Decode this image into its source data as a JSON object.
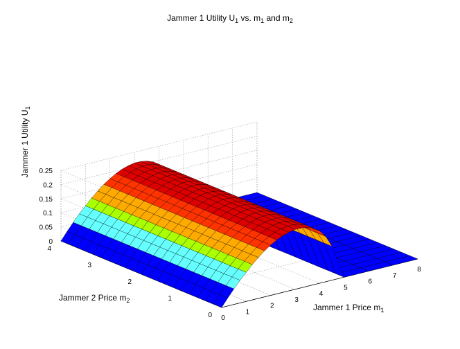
{
  "chart_data": {
    "type": "surface",
    "title": {
      "main": "Jammer 1 Utility U",
      "sub1": "1",
      "mid": " vs. m",
      "sub2": "1",
      "mid2": " and m",
      "sub3": "2"
    },
    "xlabel": {
      "main": "Jammer 1 Price m",
      "sub": "1"
    },
    "ylabel": {
      "main": "Jammer 2 Price m",
      "sub": "2"
    },
    "zlabel": {
      "main": "Jammer 1 Utility U",
      "sub": "1"
    },
    "xlim": [
      0,
      8
    ],
    "ylim": [
      0,
      4
    ],
    "zlim": [
      0,
      0.25
    ],
    "x_ticks": [
      "0",
      "1",
      "2",
      "3",
      "4",
      "5",
      "6",
      "7",
      "8"
    ],
    "y_ticks": [
      "0",
      "1",
      "2",
      "3",
      "4"
    ],
    "z_ticks": [
      "0",
      "0.05",
      "0.1",
      "0.15",
      "0.2",
      "0.25"
    ],
    "grid": true,
    "colormap": [
      "#0000ff",
      "#0000ff",
      "#66ffff",
      "#aaff00",
      "#ffaa00",
      "#ff3300",
      "#dd0000",
      "#990000"
    ],
    "surface_profile": {
      "description_of_values": "U1 as a function of m1 (independent of m2 within plotted range)",
      "m1": [
        0,
        0.25,
        0.5,
        0.75,
        1.0,
        1.25,
        1.5,
        1.75,
        2.0,
        2.25,
        2.5,
        2.75,
        3.0,
        3.25,
        3.5,
        3.75,
        4.0,
        4.25,
        4.5,
        5,
        6,
        7,
        8
      ],
      "U1": [
        0,
        0.028,
        0.055,
        0.08,
        0.103,
        0.125,
        0.145,
        0.163,
        0.178,
        0.191,
        0.201,
        0.208,
        0.212,
        0.212,
        0.208,
        0.2,
        0.185,
        0.16,
        0.12,
        0,
        0,
        0,
        0
      ]
    }
  }
}
